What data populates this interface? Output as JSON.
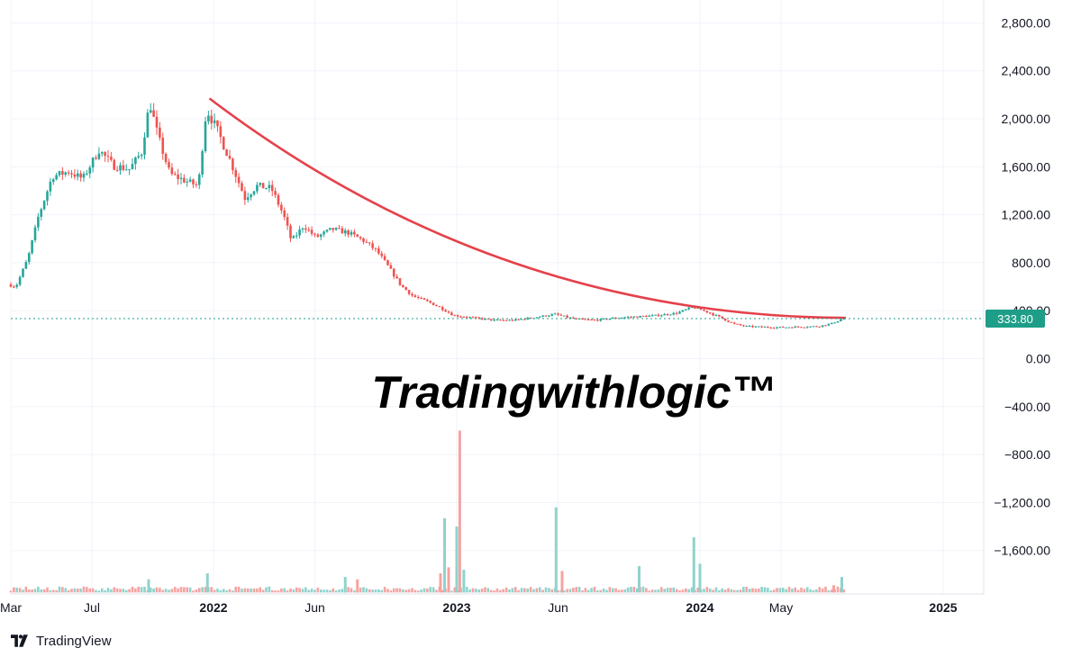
{
  "chart_data": {
    "type": "candlestick",
    "y_axis": {
      "range": [
        -2000,
        3000
      ],
      "ticks": [
        "2,800.00",
        "2,400.00",
        "2,000.00",
        "1,600.00",
        "1,200.00",
        "800.00",
        "400.00",
        "0.00",
        "−400.00",
        "−800.00",
        "−1,200.00",
        "−1,600.00"
      ],
      "tick_values": [
        2800,
        2400,
        2000,
        1600,
        1200,
        800,
        400,
        0,
        -400,
        -800,
        -1200,
        -1600
      ]
    },
    "x_axis": {
      "labels": [
        {
          "text": "Mar",
          "month": 0
        },
        {
          "text": "Jul",
          "month": 4
        },
        {
          "text": "2022",
          "month": 10,
          "bold": true
        },
        {
          "text": "Jun",
          "month": 15
        },
        {
          "text": "2023",
          "month": 22,
          "bold": true
        },
        {
          "text": "Jun",
          "month": 27
        },
        {
          "text": "2024",
          "month": 34,
          "bold": true
        },
        {
          "text": "May",
          "month": 38
        },
        {
          "text": "2025",
          "month": 46,
          "bold": true
        }
      ],
      "start": "2021-03"
    },
    "last_price": {
      "value": 333.8,
      "label": "333.80"
    },
    "price_path": [
      {
        "m": 0,
        "p": 620
      },
      {
        "m": 0.4,
        "p": 600
      },
      {
        "m": 1.0,
        "p": 840
      },
      {
        "m": 1.5,
        "p": 1180
      },
      {
        "m": 2.2,
        "p": 1520
      },
      {
        "m": 3.0,
        "p": 1560
      },
      {
        "m": 3.7,
        "p": 1500
      },
      {
        "m": 4.5,
        "p": 1740
      },
      {
        "m": 5.2,
        "p": 1610
      },
      {
        "m": 6.0,
        "p": 1580
      },
      {
        "m": 6.6,
        "p": 1720
      },
      {
        "m": 7.0,
        "p": 2140
      },
      {
        "m": 7.4,
        "p": 1860
      },
      {
        "m": 8.0,
        "p": 1540
      },
      {
        "m": 8.8,
        "p": 1480
      },
      {
        "m": 9.4,
        "p": 1440
      },
      {
        "m": 9.8,
        "p": 2080
      },
      {
        "m": 10.3,
        "p": 1920
      },
      {
        "m": 11.0,
        "p": 1640
      },
      {
        "m": 11.7,
        "p": 1340
      },
      {
        "m": 12.3,
        "p": 1440
      },
      {
        "m": 13.0,
        "p": 1420
      },
      {
        "m": 13.6,
        "p": 1200
      },
      {
        "m": 14.0,
        "p": 980
      },
      {
        "m": 14.6,
        "p": 1110
      },
      {
        "m": 15.2,
        "p": 1010
      },
      {
        "m": 16.0,
        "p": 1080
      },
      {
        "m": 16.8,
        "p": 1050
      },
      {
        "m": 17.5,
        "p": 990
      },
      {
        "m": 18.2,
        "p": 900
      },
      {
        "m": 18.8,
        "p": 760
      },
      {
        "m": 19.4,
        "p": 610
      },
      {
        "m": 20.0,
        "p": 520
      },
      {
        "m": 20.8,
        "p": 470
      },
      {
        "m": 21.4,
        "p": 420
      },
      {
        "m": 22.0,
        "p": 360
      },
      {
        "m": 23.0,
        "p": 340
      },
      {
        "m": 24.0,
        "p": 320
      },
      {
        "m": 25.0,
        "p": 320
      },
      {
        "m": 26.0,
        "p": 345
      },
      {
        "m": 27.0,
        "p": 370
      },
      {
        "m": 28.0,
        "p": 330
      },
      {
        "m": 29.0,
        "p": 320
      },
      {
        "m": 30.0,
        "p": 340
      },
      {
        "m": 31.0,
        "p": 350
      },
      {
        "m": 32.0,
        "p": 360
      },
      {
        "m": 33.0,
        "p": 380
      },
      {
        "m": 33.8,
        "p": 430
      },
      {
        "m": 34.5,
        "p": 390
      },
      {
        "m": 35.2,
        "p": 340
      },
      {
        "m": 35.8,
        "p": 290
      },
      {
        "m": 36.4,
        "p": 270
      },
      {
        "m": 37.0,
        "p": 265
      },
      {
        "m": 38.0,
        "p": 260
      },
      {
        "m": 39.0,
        "p": 265
      },
      {
        "m": 40.0,
        "p": 270
      },
      {
        "m": 40.6,
        "p": 290
      },
      {
        "m": 41.2,
        "p": 333.8
      }
    ],
    "trendline": {
      "start": {
        "m": 9.8,
        "p": 2170
      },
      "end": {
        "m": 41.2,
        "p": 340
      },
      "curvature": 0.5
    },
    "volume": {
      "baseline_value": -1950,
      "spikes": [
        {
          "m": 9.7,
          "v": 160,
          "up": true
        },
        {
          "m": 6.8,
          "v": 110,
          "up": true
        },
        {
          "m": 16.5,
          "v": 130,
          "up": true
        },
        {
          "m": 17.1,
          "v": 110,
          "up": false
        },
        {
          "m": 21.2,
          "v": 160,
          "up": false
        },
        {
          "m": 21.4,
          "v": 620,
          "up": true
        },
        {
          "m": 21.6,
          "v": 210,
          "up": false
        },
        {
          "m": 22.0,
          "v": 550,
          "up": true
        },
        {
          "m": 22.15,
          "v": 1350,
          "up": false
        },
        {
          "m": 22.35,
          "v": 190,
          "up": true
        },
        {
          "m": 26.9,
          "v": 710,
          "up": true
        },
        {
          "m": 27.2,
          "v": 180,
          "up": false
        },
        {
          "m": 31.0,
          "v": 220,
          "up": true
        },
        {
          "m": 33.7,
          "v": 460,
          "up": true
        },
        {
          "m": 34.0,
          "v": 240,
          "up": true
        },
        {
          "m": 40.6,
          "v": 60,
          "up": false
        },
        {
          "m": 41.0,
          "v": 130,
          "up": true
        }
      ]
    },
    "colors": {
      "up": "#26a69a",
      "down": "#ef5350",
      "up_vol": "#8fd3cc",
      "down_vol": "#f5a3a2",
      "trendline": "#e5414a",
      "last_price": "#1e9e88",
      "grid": "#f0f3fa",
      "axis_text": "#131722"
    }
  },
  "watermark": {
    "text": "Tradingwithlogic™"
  },
  "footer": {
    "brand": "TradingView",
    "logo_icon": "tradingview-logo-icon"
  }
}
